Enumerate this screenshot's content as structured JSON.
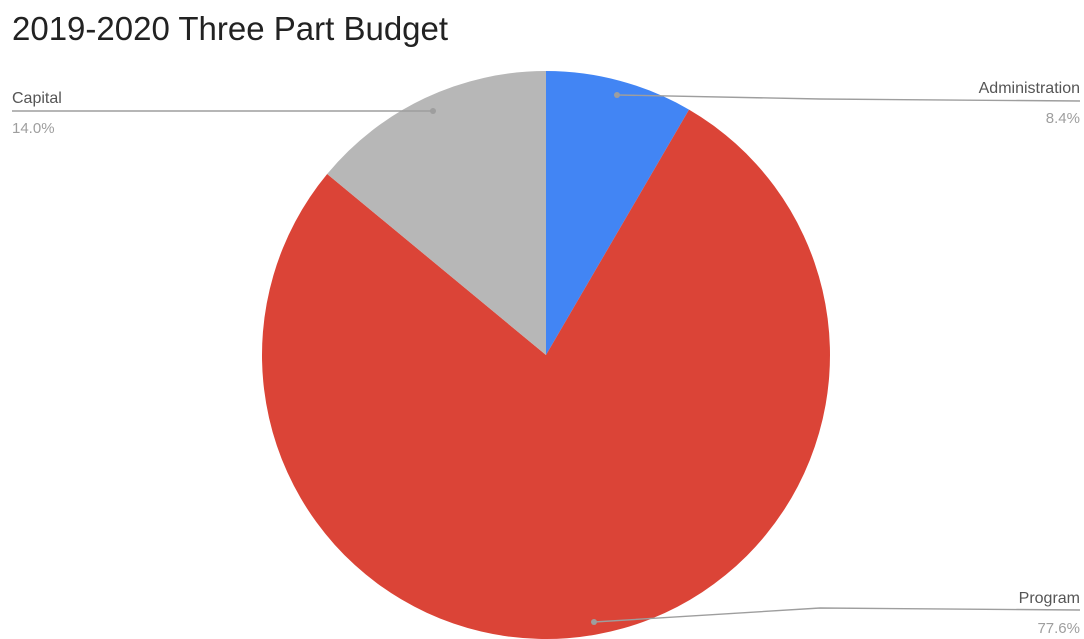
{
  "chart_data": {
    "type": "pie",
    "title": "2019-2020 Three Part Budget",
    "legend": "labels-with-leader-lines",
    "slices": [
      {
        "name": "Administration",
        "value": 8.4,
        "label": "8.4%",
        "color": "#4285f4"
      },
      {
        "name": "Program",
        "value": 77.6,
        "label": "77.6%",
        "color": "#db4437"
      },
      {
        "name": "Capital",
        "value": 14.0,
        "label": "14.0%",
        "color": "#b7b7b7"
      }
    ]
  }
}
